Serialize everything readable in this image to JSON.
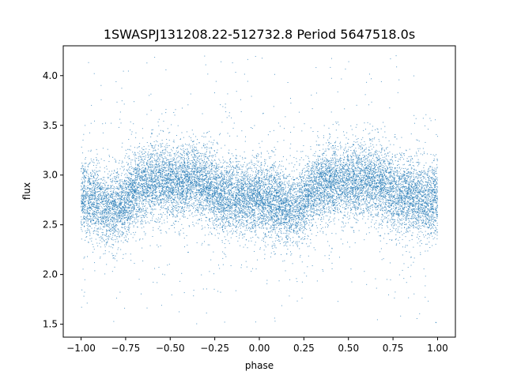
{
  "chart_data": {
    "type": "scatter",
    "title": "1SWASPJ131208.22-512732.8 Period 5647518.0s",
    "xlabel": "phase",
    "ylabel": "flux",
    "xlim": [
      -1.1,
      1.1
    ],
    "ylim": [
      1.37,
      4.3
    ],
    "x_ticks": [
      {
        "value": -1.0,
        "label": "−1.00"
      },
      {
        "value": -0.75,
        "label": "−0.75"
      },
      {
        "value": -0.5,
        "label": "−0.50"
      },
      {
        "value": -0.25,
        "label": "−0.25"
      },
      {
        "value": 0.0,
        "label": "0.00"
      },
      {
        "value": 0.25,
        "label": "0.25"
      },
      {
        "value": 0.5,
        "label": "0.50"
      },
      {
        "value": 0.75,
        "label": "0.75"
      },
      {
        "value": 1.0,
        "label": "1.00"
      }
    ],
    "y_ticks": [
      {
        "value": 1.5,
        "label": "1.5"
      },
      {
        "value": 2.0,
        "label": "2.0"
      },
      {
        "value": 2.5,
        "label": "2.5"
      },
      {
        "value": 3.0,
        "label": "3.0"
      },
      {
        "value": 3.5,
        "label": "3.5"
      },
      {
        "value": 4.0,
        "label": "4.0"
      }
    ],
    "grid": false,
    "legend": "none",
    "point_color": "#1f77b4",
    "phase_range": [
      -1.0,
      1.0
    ],
    "profile": {
      "phase": [
        0.0,
        0.05,
        0.1,
        0.15,
        0.2,
        0.25,
        0.3,
        0.35,
        0.4,
        0.45,
        0.5,
        0.55,
        0.6,
        0.65,
        0.7,
        0.75,
        0.8,
        0.85,
        0.9,
        0.95,
        1.0
      ],
      "median_flux": [
        2.78,
        2.75,
        2.72,
        2.68,
        2.66,
        2.72,
        2.86,
        2.92,
        2.94,
        2.93,
        2.92,
        2.94,
        2.96,
        2.94,
        2.9,
        2.82,
        2.78,
        2.8,
        2.77,
        2.74,
        2.78
      ]
    },
    "core_spread": 0.18,
    "outlier_range": [
      1.5,
      4.2
    ],
    "point_count": 16000
  }
}
